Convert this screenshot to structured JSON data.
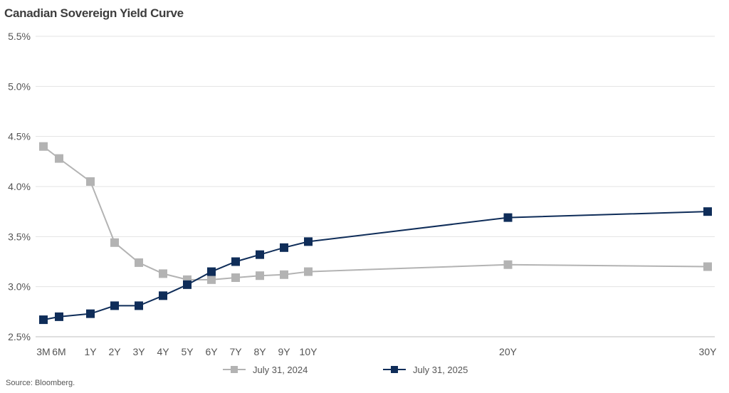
{
  "chart_data": {
    "type": "line",
    "title": "Canadian Sovereign Yield Curve",
    "source": "Source: Bloomberg.",
    "categories": [
      "3M",
      "6M",
      "1Y",
      "2Y",
      "3Y",
      "4Y",
      "5Y",
      "6Y",
      "7Y",
      "8Y",
      "9Y",
      "10Y",
      "20Y",
      "30Y"
    ],
    "x_years": [
      0.25,
      0.5,
      1,
      2,
      3,
      4,
      5,
      6,
      7,
      8,
      9,
      10,
      20,
      30
    ],
    "yticks": [
      "2.5%",
      "3.0%",
      "3.5%",
      "4.0%",
      "4.5%",
      "5.0%",
      "5.5%"
    ],
    "ylim": [
      2.5,
      5.5
    ],
    "grid": true,
    "legend_position": "bottom",
    "series": [
      {
        "name": "July 31, 2024",
        "color": "#b3b3b3",
        "values": [
          4.4,
          4.28,
          4.05,
          3.44,
          3.24,
          3.13,
          3.07,
          3.07,
          3.09,
          3.11,
          3.12,
          3.15,
          3.22,
          3.2
        ]
      },
      {
        "name": "July 31, 2025",
        "color": "#0f2d59",
        "values": [
          2.67,
          2.7,
          2.73,
          2.81,
          2.81,
          2.91,
          3.02,
          3.15,
          3.25,
          3.32,
          3.39,
          3.45,
          3.69,
          3.75
        ]
      }
    ]
  }
}
